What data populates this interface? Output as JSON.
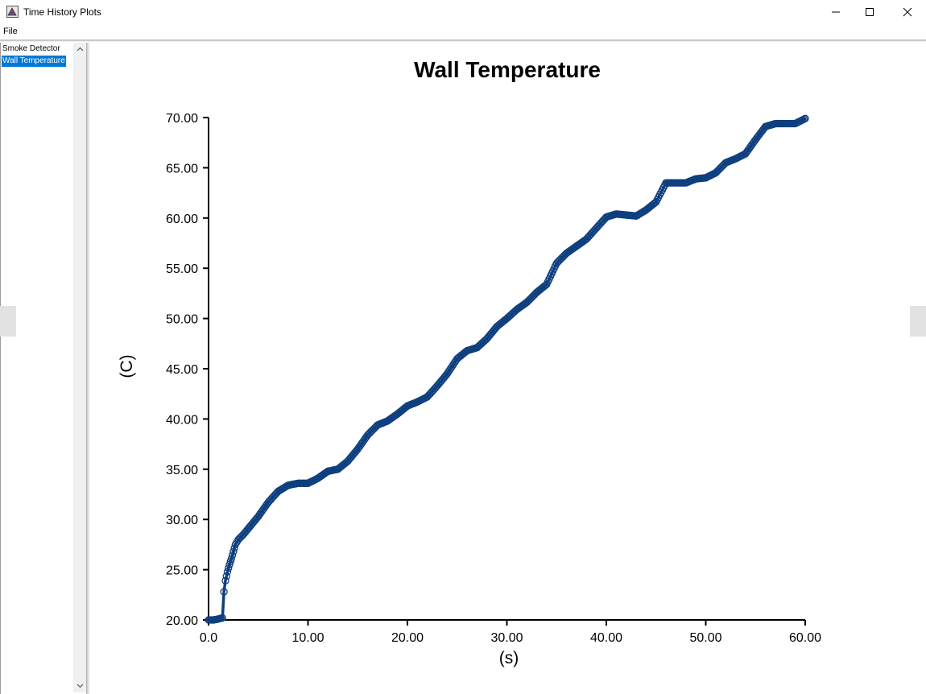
{
  "window": {
    "title": "Time History Plots",
    "minimize_icon": "minimize-icon",
    "maximize_icon": "maximize-icon",
    "close_icon": "close-icon"
  },
  "menu": {
    "file_label": "File"
  },
  "sidebar": {
    "items": [
      {
        "label": "Smoke Detector",
        "selected": false
      },
      {
        "label": "Wall Temperature",
        "selected": true
      }
    ],
    "selected_color": "#0078d7"
  },
  "chart_data": {
    "type": "line",
    "title": "Wall Temperature",
    "xlabel": "(s)",
    "ylabel": "(C)",
    "xlim": [
      0,
      60
    ],
    "ylim": [
      20,
      70
    ],
    "x_ticks": [
      "0.0",
      "10.00",
      "20.00",
      "30.00",
      "40.00",
      "50.00",
      "60.00"
    ],
    "y_ticks": [
      "20.00",
      "25.00",
      "30.00",
      "35.00",
      "40.00",
      "45.00",
      "50.00",
      "55.00",
      "60.00",
      "65.00",
      "70.00"
    ],
    "grid": false,
    "marker": "open-circle",
    "color": "#0e3f7f",
    "series": [
      {
        "x": [
          0.0,
          0.5,
          1.0,
          1.4,
          1.55,
          1.7,
          1.9,
          2.1,
          2.3,
          2.5,
          2.7,
          3.0,
          3.5,
          4.0,
          5.0,
          6.0,
          7.0,
          8.0,
          9.0,
          10.0,
          11.0,
          12.0,
          13.0,
          14.0,
          15.0,
          16.0,
          17.0,
          18.0,
          19.0,
          20.0,
          21.0,
          22.0,
          23.0,
          24.0,
          25.0,
          26.0,
          27.0,
          28.0,
          29.0,
          30.0,
          31.0,
          32.0,
          33.0,
          34.0,
          35.0,
          36.0,
          37.0,
          38.0,
          39.0,
          40.0,
          41.0,
          42.0,
          43.0,
          44.0,
          45.0,
          46.0,
          47.0,
          48.0,
          49.0,
          50.0,
          51.0,
          52.0,
          53.0,
          54.0,
          55.0,
          56.0,
          57.0,
          58.0,
          59.0,
          60.0
        ],
        "y": [
          20.0,
          20.0,
          20.1,
          20.2,
          22.8,
          23.9,
          24.8,
          25.5,
          26.1,
          26.8,
          27.5,
          28.0,
          28.5,
          29.1,
          30.3,
          31.7,
          32.8,
          33.4,
          33.6,
          33.6,
          34.1,
          34.8,
          35.0,
          35.8,
          37.0,
          38.4,
          39.4,
          39.8,
          40.5,
          41.3,
          41.7,
          42.2,
          43.3,
          44.5,
          46.0,
          46.8,
          47.1,
          48.0,
          49.2,
          50.0,
          50.9,
          51.6,
          52.6,
          53.4,
          55.5,
          56.5,
          57.2,
          57.9,
          59.0,
          60.1,
          60.4,
          60.3,
          60.2,
          60.8,
          61.6,
          63.5,
          63.5,
          63.5,
          63.9,
          64.0,
          64.5,
          65.5,
          65.9,
          66.4,
          67.8,
          69.1,
          69.4,
          69.4,
          69.4,
          69.9
        ]
      }
    ]
  }
}
